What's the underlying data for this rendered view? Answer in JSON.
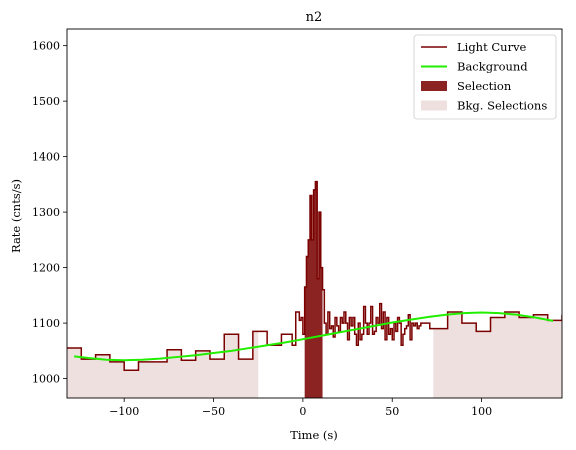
{
  "chart_data": {
    "type": "line",
    "title": "n2",
    "xlabel": "Time (s)",
    "ylabel": "Rate (cnts/s)",
    "xlim": [
      -132,
      145
    ],
    "ylim": [
      965,
      1630
    ],
    "xticks": [
      -100,
      -50,
      0,
      50,
      100
    ],
    "xtick_labels": [
      "−100",
      "−50",
      "0",
      "50",
      "100"
    ],
    "yticks": [
      1000,
      1100,
      1200,
      1300,
      1400,
      1500,
      1600
    ],
    "ytick_labels": [
      "1000",
      "1100",
      "1200",
      "1300",
      "1400",
      "1500",
      "1600"
    ],
    "legend_position": "top-right",
    "colors": {
      "light_curve": "#7a0000",
      "background": "#22ee00",
      "selection": "#8b2323",
      "bkg_selection": "#efe0e0"
    },
    "legend": [
      {
        "label": "Light Curve",
        "kind": "line",
        "color": "#7a0000"
      },
      {
        "label": "Background",
        "kind": "line",
        "color": "#22ee00"
      },
      {
        "label": "Selection",
        "kind": "patch",
        "color": "#8b2323"
      },
      {
        "label": "Bkg. Selections",
        "kind": "patch",
        "color": "#efe0e0"
      }
    ],
    "bkg_selections": [
      {
        "x_start": -132,
        "x_end": -25
      },
      {
        "x_start": 73,
        "x_end": 145
      }
    ],
    "selection": {
      "x_start": 1,
      "x_end": 11
    },
    "background": {
      "x": [
        -128,
        -120,
        -110,
        -100,
        -90,
        -80,
        -70,
        -60,
        -50,
        -40,
        -30,
        -20,
        -10,
        0,
        10,
        20,
        30,
        40,
        50,
        60,
        70,
        80,
        90,
        100,
        110,
        120,
        130,
        140
      ],
      "y": [
        1040,
        1037,
        1034,
        1033,
        1034,
        1036,
        1039,
        1042,
        1046,
        1050,
        1055,
        1060,
        1065,
        1071,
        1077,
        1083,
        1089,
        1095,
        1101,
        1106,
        1111,
        1115,
        1118,
        1119,
        1118,
        1115,
        1110,
        1104
      ]
    },
    "light_curve": {
      "edges": [
        -132,
        -124,
        -116,
        -108,
        -100,
        -92,
        -84,
        -76,
        -68,
        -60,
        -52,
        -44,
        -36,
        -28,
        -20,
        -12,
        -6,
        -4,
        -2,
        -1,
        0,
        1,
        2,
        3,
        4,
        5,
        6,
        7,
        8,
        9,
        10,
        11,
        12,
        13,
        14,
        15,
        16,
        17,
        18,
        19,
        20,
        21,
        22,
        23,
        24,
        25,
        26,
        27,
        28,
        29,
        30,
        31,
        32,
        33,
        34,
        35,
        36,
        37,
        38,
        39,
        40,
        41,
        42,
        43,
        44,
        45,
        46,
        47,
        48,
        49,
        50,
        51,
        52,
        53,
        54,
        55,
        56,
        57,
        58,
        59,
        60,
        61,
        62,
        63,
        64,
        65,
        66,
        71,
        73,
        81,
        89,
        97,
        105,
        113,
        121,
        129,
        137,
        145
      ],
      "values": [
        1055,
        1035,
        1043,
        1030,
        1015,
        1030,
        1030,
        1052,
        1033,
        1050,
        1035,
        1080,
        1035,
        1085,
        1060,
        1080,
        1060,
        1120,
        1105,
        1110,
        1080,
        1165,
        1220,
        1250,
        1330,
        1250,
        1340,
        1355,
        1180,
        1300,
        1200,
        1160,
        1100,
        1080,
        1120,
        1090,
        1095,
        1075,
        1110,
        1095,
        1085,
        1110,
        1100,
        1120,
        1100,
        1070,
        1110,
        1095,
        1110,
        1080,
        1060,
        1100,
        1070,
        1080,
        1130,
        1100,
        1080,
        1100,
        1130,
        1080,
        1085,
        1110,
        1100,
        1135,
        1090,
        1120,
        1070,
        1110,
        1080,
        1090,
        1070,
        1100,
        1085,
        1110,
        1100,
        1060,
        1080,
        1090,
        1095,
        1115,
        1070,
        1100,
        1095,
        1100,
        1090,
        1095,
        1100,
        1090,
        1090,
        1120,
        1100,
        1085,
        1110,
        1120,
        1110,
        1115,
        1105,
        1115
      ]
    }
  }
}
